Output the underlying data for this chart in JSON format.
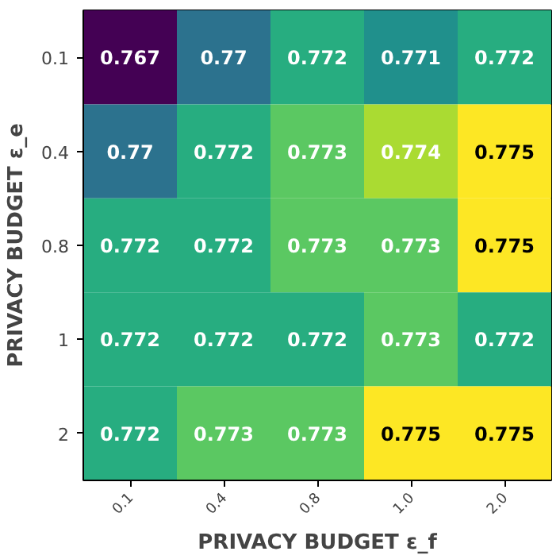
{
  "chart_data": {
    "type": "heatmap",
    "xlabel": "PRIVACY BUDGET ε_f",
    "ylabel": "PRIVACY BUDGET ε_e",
    "categories": [
      "0.1",
      "0.4",
      "0.8",
      "1.0",
      "2.0"
    ],
    "y_categories": [
      "0.1",
      "0.4",
      "0.8",
      "1",
      "2"
    ],
    "cells": [
      [
        0.767,
        0.77,
        0.772,
        0.771,
        0.772
      ],
      [
        0.77,
        0.772,
        0.773,
        0.774,
        0.775
      ],
      [
        0.772,
        0.772,
        0.773,
        0.773,
        0.775
      ],
      [
        0.772,
        0.772,
        0.772,
        0.773,
        0.772
      ],
      [
        0.772,
        0.773,
        0.773,
        0.775,
        0.775
      ]
    ],
    "data_labels": true
  }
}
